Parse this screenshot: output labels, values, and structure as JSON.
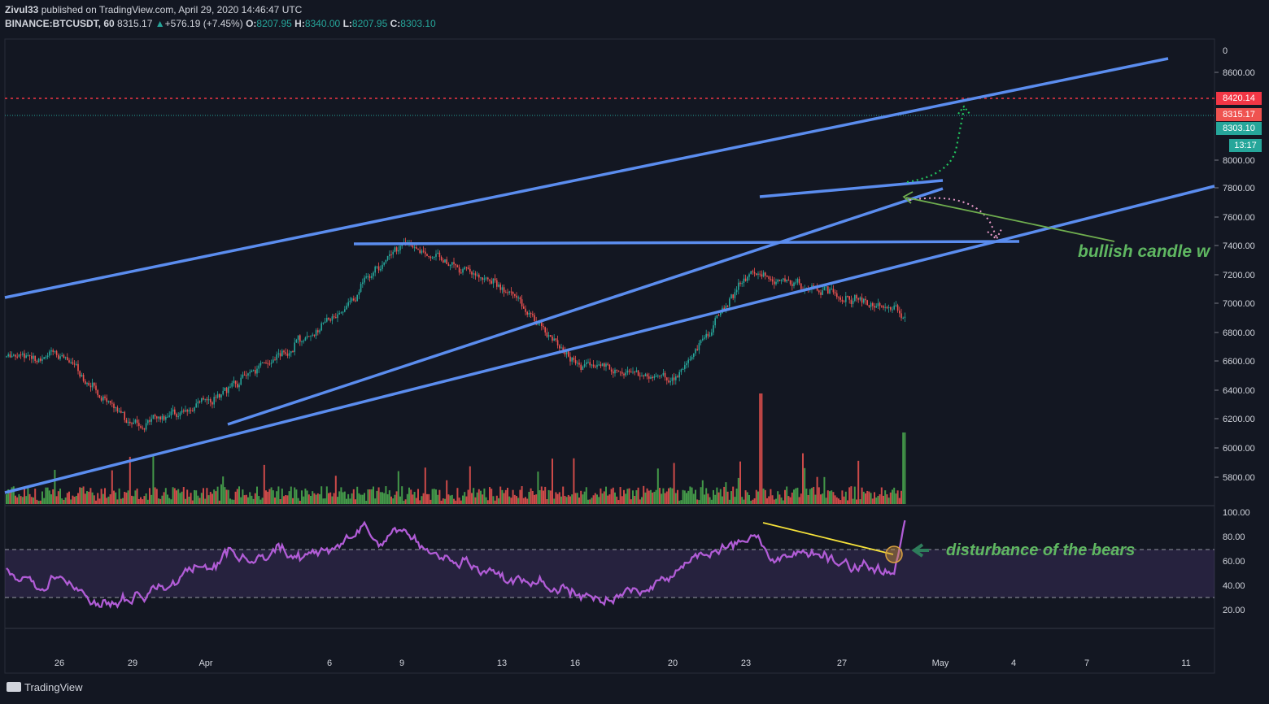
{
  "header": {
    "author": "Zivul33",
    "published_text": "published on TradingView.com, April 29, 2020 14:46:47 UTC",
    "symbol": "BINANCE:BTCUSDT, 60",
    "last": "8315.17",
    "change": "+576.19 (+7.45%)",
    "o_label": "O:",
    "o_value": "8207.95",
    "h_label": "H:",
    "h_value": "8340.00",
    "l_label": "L:",
    "l_value": "8207.95",
    "c_label": "C:",
    "c_value": "8303.10"
  },
  "price_scale": {
    "top_label": "0",
    "ticks": [
      "8600.00",
      "8400.00",
      "8000.00",
      "7800.00",
      "7600.00",
      "7400.00",
      "7200.00",
      "7000.00",
      "6800.00",
      "6600.00",
      "6400.00",
      "6200.00",
      "6000.00",
      "5800.00"
    ],
    "tags": [
      {
        "text": "8420.14",
        "color": "#f23645"
      },
      {
        "text": "8315.17",
        "color": "#ef5350"
      },
      {
        "text": "8303.10",
        "color": "#26a69a"
      },
      {
        "text": "13:17",
        "color": "#26a69a"
      }
    ]
  },
  "rsi_scale": {
    "ticks": [
      "100.00",
      "80.00",
      "60.00",
      "40.00",
      "20.00"
    ]
  },
  "time_axis": {
    "labels": [
      "26",
      "29",
      "Apr",
      "6",
      "9",
      "13",
      "16",
      "20",
      "23",
      "27",
      "May",
      "4",
      "7",
      "11"
    ]
  },
  "annotations": {
    "bullish": "bullish candle w",
    "bears": "disturbance of the bears"
  },
  "colors": {
    "up": "#26a69a",
    "down": "#ef5350",
    "trendline": "#5b8def",
    "rsi": "#b15cd6",
    "vol_up": "#4caf50",
    "vol_down": "#ef5350",
    "text_green": "#5fb761"
  },
  "footer": {
    "brand": "TradingView"
  },
  "chart_data": {
    "type": "line",
    "title": "BINANCE:BTCUSDT, 60",
    "x": [
      "26",
      "29",
      "Apr",
      "6",
      "9",
      "13",
      "16",
      "20",
      "23",
      "27",
      "May",
      "4",
      "7",
      "11"
    ],
    "ylim": [
      5700,
      8700
    ],
    "series": [
      {
        "values": [
          6650,
          6200,
          6350,
          6900,
          7400,
          7100,
          6600,
          6500,
          7200,
          7050,
          6850,
          7600,
          7700,
          8315
        ]
      }
    ],
    "rsi": {
      "ylim": [
        0,
        100
      ],
      "levels": [
        30,
        70
      ],
      "last": 93
    },
    "horizontal_levels": [
      8420.14,
      8303.1
    ]
  }
}
